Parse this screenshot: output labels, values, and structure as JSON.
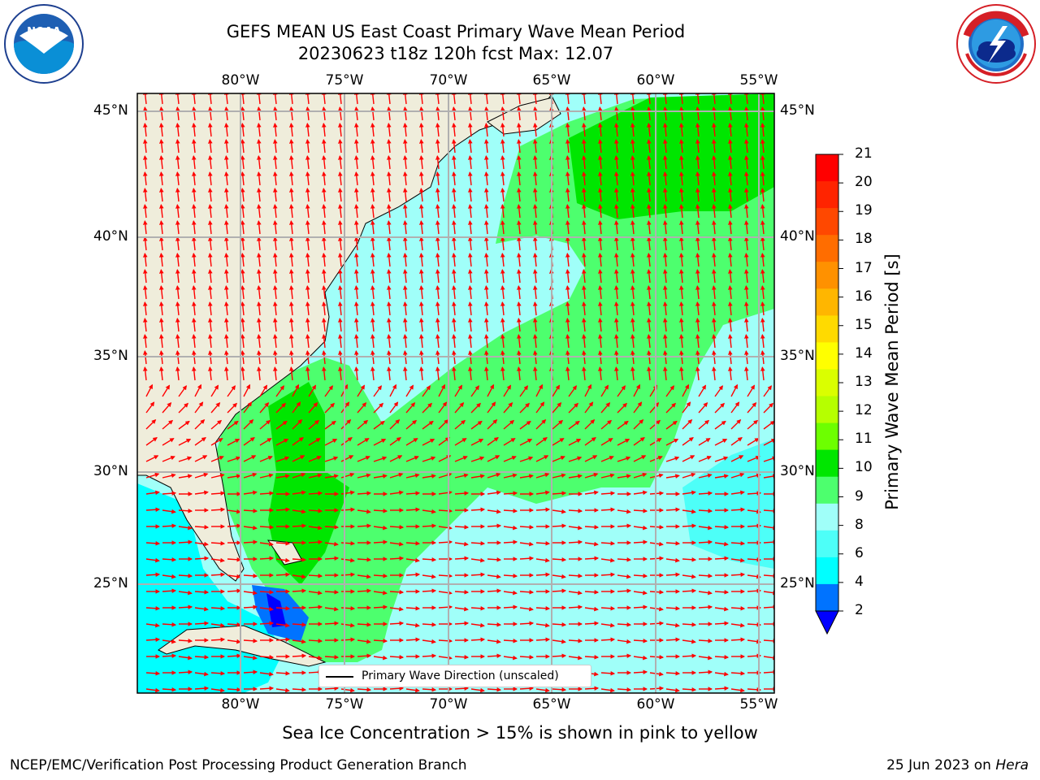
{
  "header": {
    "title_line1": "GEFS MEAN US East Coast Primary Wave Mean Period",
    "title_line2": "20230623 t18z 120h fcst   Max: 12.07"
  },
  "logos": {
    "left": "NOAA",
    "right": "NATIONAL WEATHER SERVICE"
  },
  "map": {
    "lon_labels": [
      "80°W",
      "75°W",
      "70°W",
      "65°W",
      "60°W",
      "55°W"
    ],
    "lat_labels": [
      "45°N",
      "40°N",
      "35°N",
      "30°N",
      "25°N"
    ],
    "legend": "Primary Wave Direction (unscaled)"
  },
  "colorbar": {
    "label": "Primary Wave Mean Period [s]",
    "ticks": [
      "21",
      "20",
      "19",
      "18",
      "17",
      "16",
      "15",
      "14",
      "13",
      "12",
      "11",
      "10",
      "9",
      "8",
      "6",
      "4",
      "2"
    ],
    "colors": [
      "#ff0000",
      "#ff2400",
      "#ff4800",
      "#ff6d00",
      "#ff9100",
      "#ffb600",
      "#ffda00",
      "#ffff00",
      "#daff00",
      "#b6ff00",
      "#6dff00",
      "#00e600",
      "#4dff6e",
      "#a0fff9",
      "#4dfff8",
      "#00ffff",
      "#0073ff"
    ],
    "under_color": "#0000ff"
  },
  "footer": {
    "caption": "Sea Ice Concentration > 15% is shown in pink to yellow",
    "left": "NCEP/EMC/Verification Post Processing Product Generation Branch",
    "right_date": "25 Jun 2023 on ",
    "right_machine": "Hera"
  }
}
